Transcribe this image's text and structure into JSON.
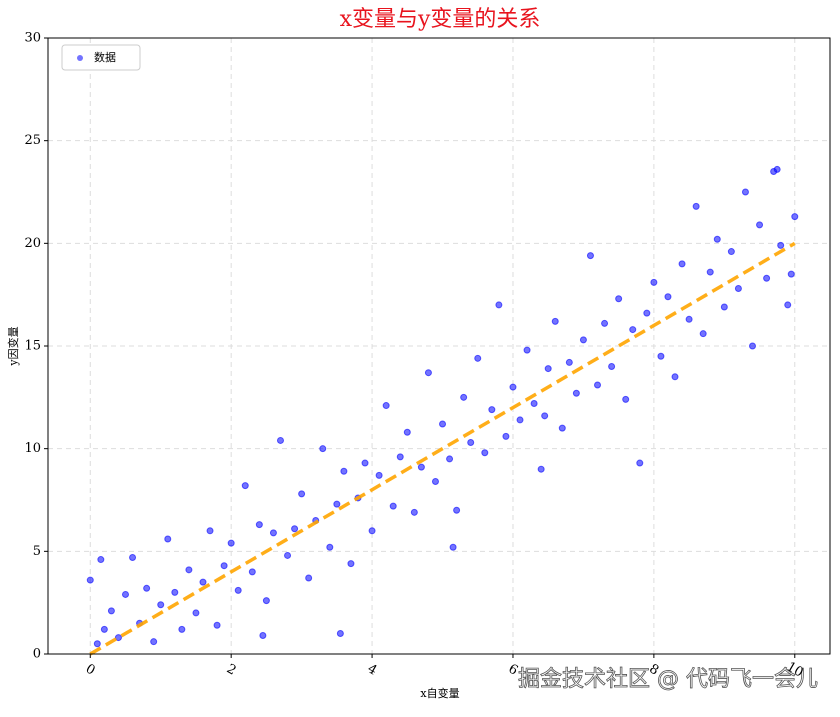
{
  "chart_data": {
    "type": "scatter",
    "title": "x变量与y变量的关系",
    "title_color": "#e8141e",
    "x_label": "x自变量",
    "y_label": "y因变量",
    "xlim": [
      -0.6,
      10.5
    ],
    "ylim": [
      0,
      30
    ],
    "xticks": [
      0,
      2,
      4,
      6,
      8,
      10
    ],
    "yticks": [
      0,
      5,
      10,
      15,
      20,
      25,
      30
    ],
    "grid": true,
    "legend": "upper left",
    "series": [
      {
        "name": "数据",
        "color": "#0000ff",
        "x": [
          0.0,
          0.1,
          0.15,
          0.2,
          0.3,
          0.4,
          0.5,
          0.6,
          0.7,
          0.8,
          0.9,
          1.0,
          1.1,
          1.2,
          1.3,
          1.4,
          1.5,
          1.6,
          1.7,
          1.8,
          1.9,
          2.0,
          2.1,
          2.2,
          2.3,
          2.4,
          2.5,
          2.6,
          2.7,
          2.8,
          2.9,
          3.0,
          3.1,
          3.2,
          3.3,
          3.4,
          3.5,
          3.6,
          3.7,
          3.8,
          3.9,
          4.0,
          4.1,
          4.2,
          4.3,
          4.4,
          4.5,
          4.6,
          4.7,
          4.8,
          4.9,
          5.0,
          5.1,
          5.2,
          5.3,
          5.4,
          5.5,
          5.6,
          5.7,
          5.8,
          5.9,
          6.0,
          6.1,
          6.2,
          6.3,
          6.4,
          6.5,
          6.6,
          6.7,
          6.8,
          6.9,
          7.0,
          7.1,
          7.2,
          7.3,
          7.4,
          7.5,
          7.6,
          7.7,
          7.8,
          7.9,
          8.0,
          8.1,
          8.2,
          8.3,
          8.4,
          8.5,
          8.6,
          8.7,
          8.8,
          8.9,
          9.0,
          9.1,
          9.2,
          9.3,
          9.4,
          9.5,
          9.6,
          9.7,
          9.8,
          9.9,
          10.0,
          9.95,
          9.75,
          3.55,
          6.45,
          2.45,
          5.15
        ],
        "values": [
          3.6,
          0.5,
          4.6,
          1.2,
          2.1,
          0.8,
          2.9,
          4.7,
          1.5,
          3.2,
          0.6,
          2.4,
          5.6,
          3.0,
          1.2,
          4.1,
          2.0,
          3.5,
          6.0,
          1.4,
          4.3,
          5.4,
          3.1,
          8.2,
          4.0,
          6.3,
          2.6,
          5.9,
          10.4,
          4.8,
          6.1,
          7.8,
          3.7,
          6.5,
          10.0,
          5.2,
          7.3,
          8.9,
          4.4,
          7.6,
          9.3,
          6.0,
          8.7,
          12.1,
          7.2,
          9.6,
          10.8,
          6.9,
          9.1,
          13.7,
          8.4,
          11.2,
          9.5,
          7.0,
          12.5,
          10.3,
          14.4,
          9.8,
          11.9,
          17.0,
          10.6,
          13.0,
          11.4,
          14.8,
          12.2,
          9.0,
          13.9,
          16.2,
          11.0,
          14.2,
          12.7,
          15.3,
          19.4,
          13.1,
          16.1,
          14.0,
          17.3,
          12.4,
          15.8,
          9.3,
          16.6,
          18.1,
          14.5,
          17.4,
          13.5,
          19.0,
          16.3,
          21.8,
          15.6,
          18.6,
          20.2,
          16.9,
          19.6,
          17.8,
          22.5,
          15.0,
          20.9,
          18.3,
          23.5,
          19.9,
          17.0,
          21.3,
          18.5,
          23.6,
          1.0,
          11.6,
          0.9,
          5.2
        ]
      }
    ],
    "fit_line": {
      "x": [
        0,
        10
      ],
      "values": [
        0,
        20
      ],
      "color": "#ffa500"
    },
    "watermark": "掘金技术社区 @ 代码飞一会儿"
  }
}
